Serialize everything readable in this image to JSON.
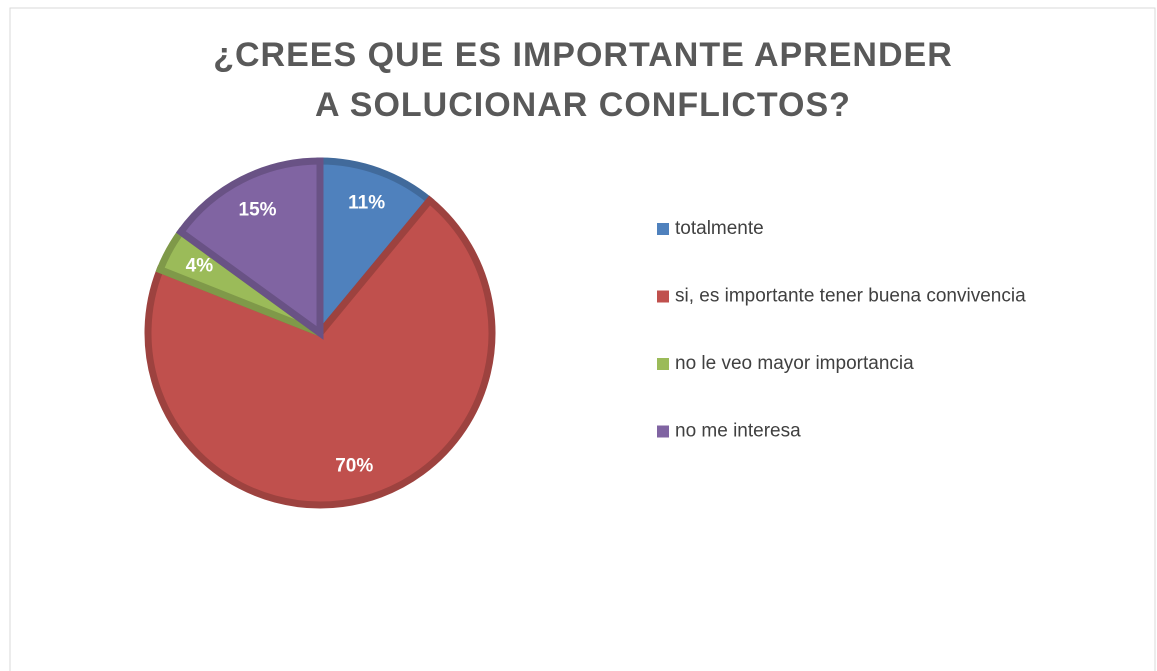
{
  "chart_data": {
    "type": "pie",
    "title": "¿CREES QUE ES IMPORTANTE APRENDER A SOLUCIONAR CONFLICTOS?",
    "categories": [
      "totalmente",
      "si, es importante tener buena convivencia",
      "no le veo mayor importancia",
      "no me interesa"
    ],
    "values": [
      11,
      70,
      4,
      15
    ],
    "value_labels": [
      "11%",
      "70%",
      "4%",
      "15%"
    ],
    "colors": [
      "#4f81bd",
      "#c0504d",
      "#9bbb59",
      "#8064a2"
    ],
    "legend": "right"
  }
}
